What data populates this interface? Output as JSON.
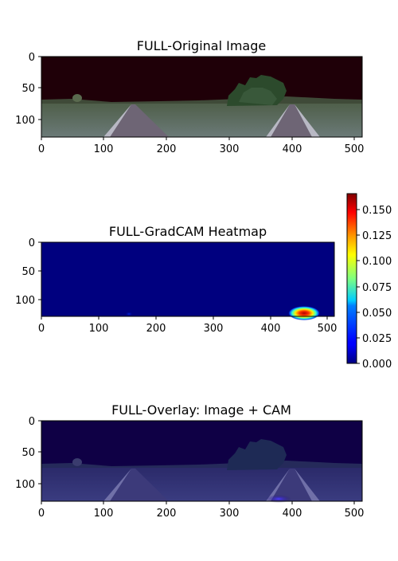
{
  "panels": [
    {
      "title": "FULL-Original Image",
      "image": "original",
      "x_ticks": [
        "0",
        "100",
        "200",
        "300",
        "400",
        "500"
      ],
      "y_ticks": [
        "0",
        "50",
        "100"
      ]
    },
    {
      "title": "FULL-GradCAM Heatmap",
      "image": "heatmap",
      "x_ticks": [
        "0",
        "100",
        "200",
        "300",
        "400",
        "500"
      ],
      "y_ticks": [
        "0",
        "50",
        "100"
      ]
    },
    {
      "title": "FULL-Overlay: Image + CAM",
      "image": "overlay",
      "x_ticks": [
        "0",
        "100",
        "200",
        "300",
        "400",
        "500"
      ],
      "y_ticks": [
        "0",
        "50",
        "100"
      ]
    }
  ],
  "colorbar": {
    "colormap": "jet",
    "range": [
      0.0,
      0.165
    ],
    "ticks": [
      "0.000",
      "0.025",
      "0.050",
      "0.075",
      "0.100",
      "0.125",
      "0.150"
    ]
  },
  "colors": {
    "sky": "#1f0008",
    "road": "#6e6575",
    "heatmap_base": "#00007f",
    "overlay_sky": "#0f0045"
  }
}
